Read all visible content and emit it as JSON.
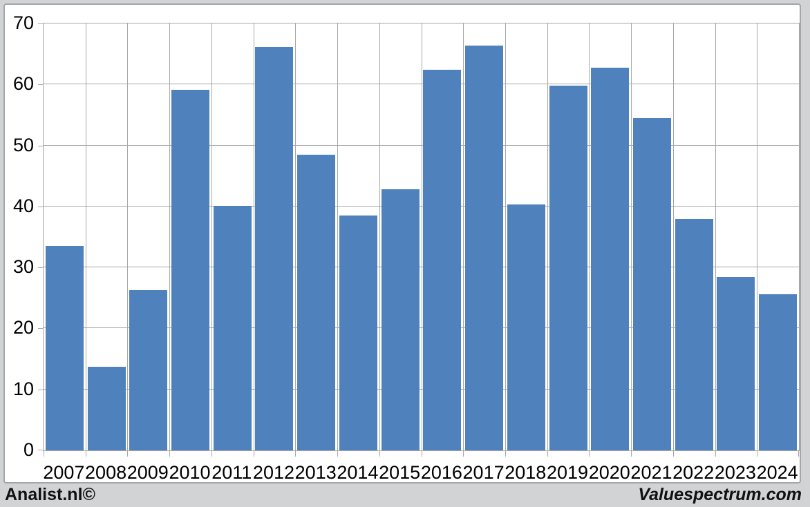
{
  "chart_data": {
    "type": "bar",
    "title": "",
    "xlabel": "",
    "ylabel": "",
    "categories": [
      "2007",
      "2008",
      "2009",
      "2010",
      "2011",
      "2012",
      "2013",
      "2014",
      "2015",
      "2016",
      "2017",
      "2018",
      "2019",
      "2020",
      "2021",
      "2022",
      "2023",
      "2024"
    ],
    "values": [
      33.5,
      13.7,
      26.3,
      59.1,
      40.1,
      66.2,
      48.5,
      38.5,
      42.8,
      62.4,
      66.4,
      40.3,
      59.8,
      62.8,
      54.5,
      37.9,
      28.4,
      25.6
    ],
    "ylim": [
      0,
      70
    ],
    "y_ticks": [
      0,
      10,
      20,
      30,
      40,
      50,
      60,
      70
    ],
    "grid": true,
    "legend": false,
    "bar_color": "#4f81bd",
    "gridline_color": "#a6a6a6"
  },
  "footer": {
    "left_text": "Analist.nl©",
    "right_text": "Valuespectrum.com"
  },
  "colors": {
    "bar": "#4f81bd",
    "grid": "#a6a6a6",
    "frame_border": "#a4a6a8",
    "page_background": "#d2d3d4",
    "plot_background": "#ffffff",
    "text": "#000000"
  }
}
